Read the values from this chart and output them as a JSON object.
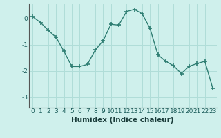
{
  "x": [
    0,
    1,
    2,
    3,
    4,
    5,
    6,
    7,
    8,
    9,
    10,
    11,
    12,
    13,
    14,
    15,
    16,
    17,
    18,
    19,
    20,
    21,
    22,
    23
  ],
  "y": [
    0.07,
    -0.15,
    -0.45,
    -0.72,
    -1.25,
    -1.83,
    -1.83,
    -1.75,
    -1.2,
    -0.85,
    -0.22,
    -0.25,
    0.27,
    0.35,
    0.18,
    -0.38,
    -1.38,
    -1.63,
    -1.8,
    -2.1,
    -1.82,
    -1.72,
    -1.63,
    -2.65
  ],
  "line_color": "#2e7d72",
  "marker": "+",
  "markersize": 5,
  "linewidth": 1.0,
  "bg_color": "#cff0ec",
  "grid_color": "#b0ddd8",
  "xlabel": "Humidex (Indice chaleur)",
  "ylim": [
    -3.4,
    0.55
  ],
  "xlim": [
    -0.5,
    23.5
  ],
  "yticks": [
    0,
    -1,
    -2,
    -3
  ],
  "xticks": [
    0,
    1,
    2,
    3,
    4,
    5,
    6,
    7,
    8,
    9,
    10,
    11,
    12,
    13,
    14,
    15,
    16,
    17,
    18,
    19,
    20,
    21,
    22,
    23
  ],
  "xlabel_fontsize": 7.5,
  "tick_fontsize": 6.5
}
